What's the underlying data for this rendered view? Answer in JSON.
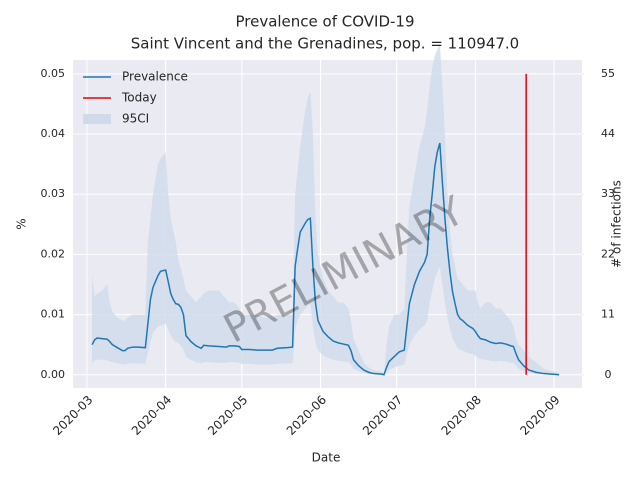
{
  "chart_data": {
    "type": "line",
    "title": "Prevalence of COVID-19",
    "subtitle": "Saint Vincent and the Grenadines, pop. = 110947.0",
    "x_label": "Date",
    "y_label": "%",
    "y2_label": "# of infections",
    "watermark": "PRELIMINARY",
    "legend": "upper left",
    "grid": true,
    "xlim": [
      -5.5,
      195
    ],
    "xticks": [
      {
        "value": 0,
        "label": "2020-03"
      },
      {
        "value": 31,
        "label": "2020-04"
      },
      {
        "value": 61,
        "label": "2020-05"
      },
      {
        "value": 92,
        "label": "2020-06"
      },
      {
        "value": 122,
        "label": "2020-07"
      },
      {
        "value": 153,
        "label": "2020-08"
      },
      {
        "value": 184,
        "label": "2020-09"
      }
    ],
    "ylim": [
      -0.0022,
      0.0523
    ],
    "yticks": [
      {
        "value": 0,
        "label": "0.00"
      },
      {
        "value": 0.01,
        "label": "0.01"
      },
      {
        "value": 0.02,
        "label": "0.02"
      },
      {
        "value": 0.03,
        "label": "0.03"
      },
      {
        "value": 0.04,
        "label": "0.04"
      },
      {
        "value": 0.05,
        "label": "0.05"
      }
    ],
    "y2lim": [
      -2.42,
      57.53
    ],
    "y2ticks": [
      0,
      11,
      22,
      33,
      44,
      55
    ],
    "x": [
      2,
      3,
      4,
      6,
      8,
      9,
      10,
      12,
      14,
      15,
      16,
      18,
      20,
      23,
      24,
      25,
      26,
      28,
      29,
      31,
      32,
      33,
      34,
      35,
      36,
      37,
      38,
      39,
      41,
      43,
      45,
      46,
      48,
      52,
      55,
      56,
      58,
      60,
      61,
      64,
      67,
      70,
      73,
      75,
      79,
      81,
      82,
      83,
      84,
      86,
      87,
      88,
      89,
      90,
      91,
      93,
      95,
      97,
      99,
      101,
      103,
      104,
      105,
      107,
      109,
      111,
      113,
      116,
      117,
      118,
      119,
      121,
      123,
      125,
      126,
      127,
      129,
      131,
      133,
      134,
      135,
      136,
      137,
      138,
      139,
      140,
      141,
      142,
      143,
      144,
      145,
      146,
      147,
      148,
      150,
      152,
      153,
      154,
      155,
      157,
      159,
      161,
      163,
      165,
      167,
      168,
      169,
      170,
      172,
      174,
      177,
      180,
      183,
      186
    ],
    "series": [
      {
        "name": "Prevalence",
        "color": "#1f77b4",
        "values": [
          0.005,
          0.0058,
          0.0061,
          0.006,
          0.0059,
          0.0055,
          0.005,
          0.0045,
          0.004,
          0.004,
          0.0044,
          0.0046,
          0.0046,
          0.0045,
          0.0085,
          0.0125,
          0.0145,
          0.0165,
          0.0172,
          0.0174,
          0.0155,
          0.0135,
          0.0125,
          0.0118,
          0.0117,
          0.0112,
          0.01,
          0.0065,
          0.0055,
          0.0048,
          0.0044,
          0.0049,
          0.0048,
          0.0047,
          0.0046,
          0.0048,
          0.0048,
          0.0047,
          0.0042,
          0.0042,
          0.0041,
          0.0041,
          0.0041,
          0.0044,
          0.0045,
          0.0046,
          0.018,
          0.021,
          0.0237,
          0.0252,
          0.0258,
          0.026,
          0.018,
          0.012,
          0.009,
          0.0072,
          0.0063,
          0.0056,
          0.0053,
          0.0051,
          0.0049,
          0.004,
          0.0025,
          0.0015,
          0.0008,
          0.0004,
          0.0002,
          0.0001,
          0.0,
          0.0012,
          0.0022,
          0.003,
          0.0038,
          0.0041,
          0.008,
          0.0118,
          0.015,
          0.0172,
          0.0187,
          0.02,
          0.026,
          0.03,
          0.0345,
          0.037,
          0.0385,
          0.032,
          0.026,
          0.021,
          0.017,
          0.0138,
          0.0118,
          0.01,
          0.0093,
          0.009,
          0.0082,
          0.0077,
          0.0072,
          0.0065,
          0.006,
          0.0058,
          0.0054,
          0.0052,
          0.0053,
          0.0051,
          0.0048,
          0.0047,
          0.0035,
          0.0025,
          0.0015,
          0.0008,
          0.0004,
          0.0002,
          0.0001,
          0.0
        ]
      }
    ],
    "band": {
      "name": "95CI",
      "color": "#cfdbea",
      "lower": [
        0.002,
        0.0024,
        0.0025,
        0.0025,
        0.0024,
        0.0022,
        0.0021,
        0.0019,
        0.0017,
        0.0017,
        0.0018,
        0.0019,
        0.0019,
        0.0018,
        0.0035,
        0.0055,
        0.007,
        0.008,
        0.0082,
        0.0085,
        0.0075,
        0.0065,
        0.0058,
        0.0055,
        0.0052,
        0.0048,
        0.0042,
        0.003,
        0.0025,
        0.0021,
        0.0019,
        0.0021,
        0.0021,
        0.002,
        0.002,
        0.0021,
        0.0021,
        0.002,
        0.0018,
        0.0018,
        0.0017,
        0.0017,
        0.0017,
        0.0018,
        0.0019,
        0.0019,
        0.0075,
        0.009,
        0.01,
        0.011,
        0.0115,
        0.0118,
        0.008,
        0.0055,
        0.004,
        0.0032,
        0.0028,
        0.0025,
        0.0023,
        0.0022,
        0.0021,
        0.0017,
        0.001,
        0.0006,
        0.0003,
        0.0001,
        0.0001,
        0.0,
        0.0,
        0.0004,
        0.0008,
        0.0012,
        0.0015,
        0.0017,
        0.0035,
        0.005,
        0.0065,
        0.0075,
        0.0082,
        0.009,
        0.012,
        0.014,
        0.016,
        0.017,
        0.018,
        0.015,
        0.012,
        0.0095,
        0.0075,
        0.006,
        0.0052,
        0.0045,
        0.0042,
        0.004,
        0.0036,
        0.0034,
        0.0032,
        0.0028,
        0.0026,
        0.0025,
        0.0023,
        0.0022,
        0.0023,
        0.0022,
        0.002,
        0.002,
        0.0015,
        0.001,
        0.0006,
        0.0003,
        0.0001,
        0.0001,
        0.0,
        0.0
      ],
      "upper": [
        0.0165,
        0.013,
        0.0135,
        0.014,
        0.015,
        0.012,
        0.0105,
        0.0095,
        0.009,
        0.009,
        0.0095,
        0.01,
        0.01,
        0.01,
        0.022,
        0.026,
        0.03,
        0.035,
        0.036,
        0.037,
        0.03,
        0.026,
        0.024,
        0.022,
        0.019,
        0.0175,
        0.016,
        0.014,
        0.013,
        0.012,
        0.013,
        0.0135,
        0.014,
        0.014,
        0.0125,
        0.012,
        0.012,
        0.011,
        0.01,
        0.01,
        0.01,
        0.0095,
        0.0095,
        0.01,
        0.01,
        0.01,
        0.03,
        0.034,
        0.038,
        0.044,
        0.046,
        0.047,
        0.04,
        0.026,
        0.02,
        0.016,
        0.014,
        0.013,
        0.012,
        0.012,
        0.011,
        0.009,
        0.006,
        0.004,
        0.002,
        0.0012,
        0.0008,
        0.0005,
        0.0003,
        0.005,
        0.008,
        0.01,
        0.01,
        0.011,
        0.02,
        0.028,
        0.033,
        0.038,
        0.041,
        0.044,
        0.048,
        0.051,
        0.053,
        0.054,
        0.055,
        0.048,
        0.04,
        0.03,
        0.024,
        0.02,
        0.018,
        0.016,
        0.0155,
        0.015,
        0.014,
        0.014,
        0.014,
        0.012,
        0.011,
        0.012,
        0.012,
        0.011,
        0.011,
        0.01,
        0.009,
        0.008,
        0.006,
        0.005,
        0.004,
        0.003,
        0.002,
        0.001,
        0.0006,
        0.0003
      ]
    },
    "today": {
      "name": "Today",
      "color": "#e8000b",
      "x": 173,
      "y": [
        0,
        0.05
      ]
    }
  }
}
